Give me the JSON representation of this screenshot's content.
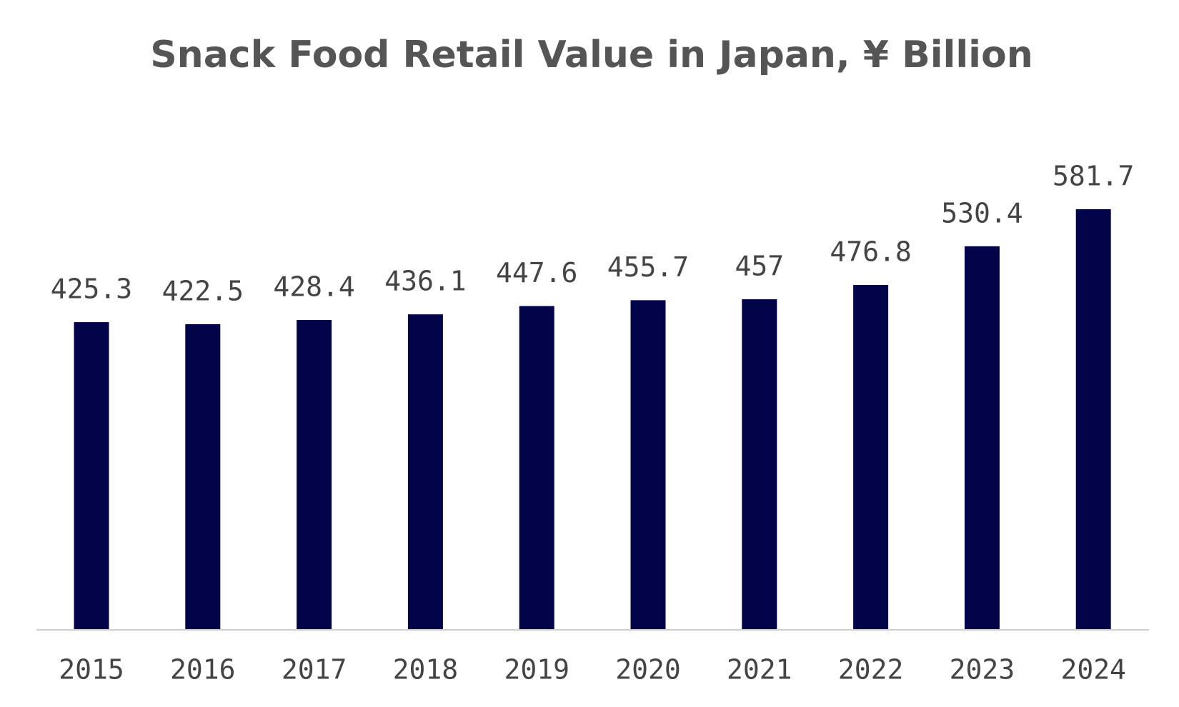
{
  "chart_data": {
    "type": "bar",
    "title": "Snack Food Retail Value in Japan, ¥ Billion",
    "categories": [
      "2015",
      "2016",
      "2017",
      "2018",
      "2019",
      "2020",
      "2021",
      "2022",
      "2023",
      "2024"
    ],
    "values": [
      425.3,
      422.5,
      428.4,
      436.1,
      447.6,
      455.7,
      457,
      476.8,
      530.4,
      581.7
    ],
    "color": "#03034a"
  }
}
